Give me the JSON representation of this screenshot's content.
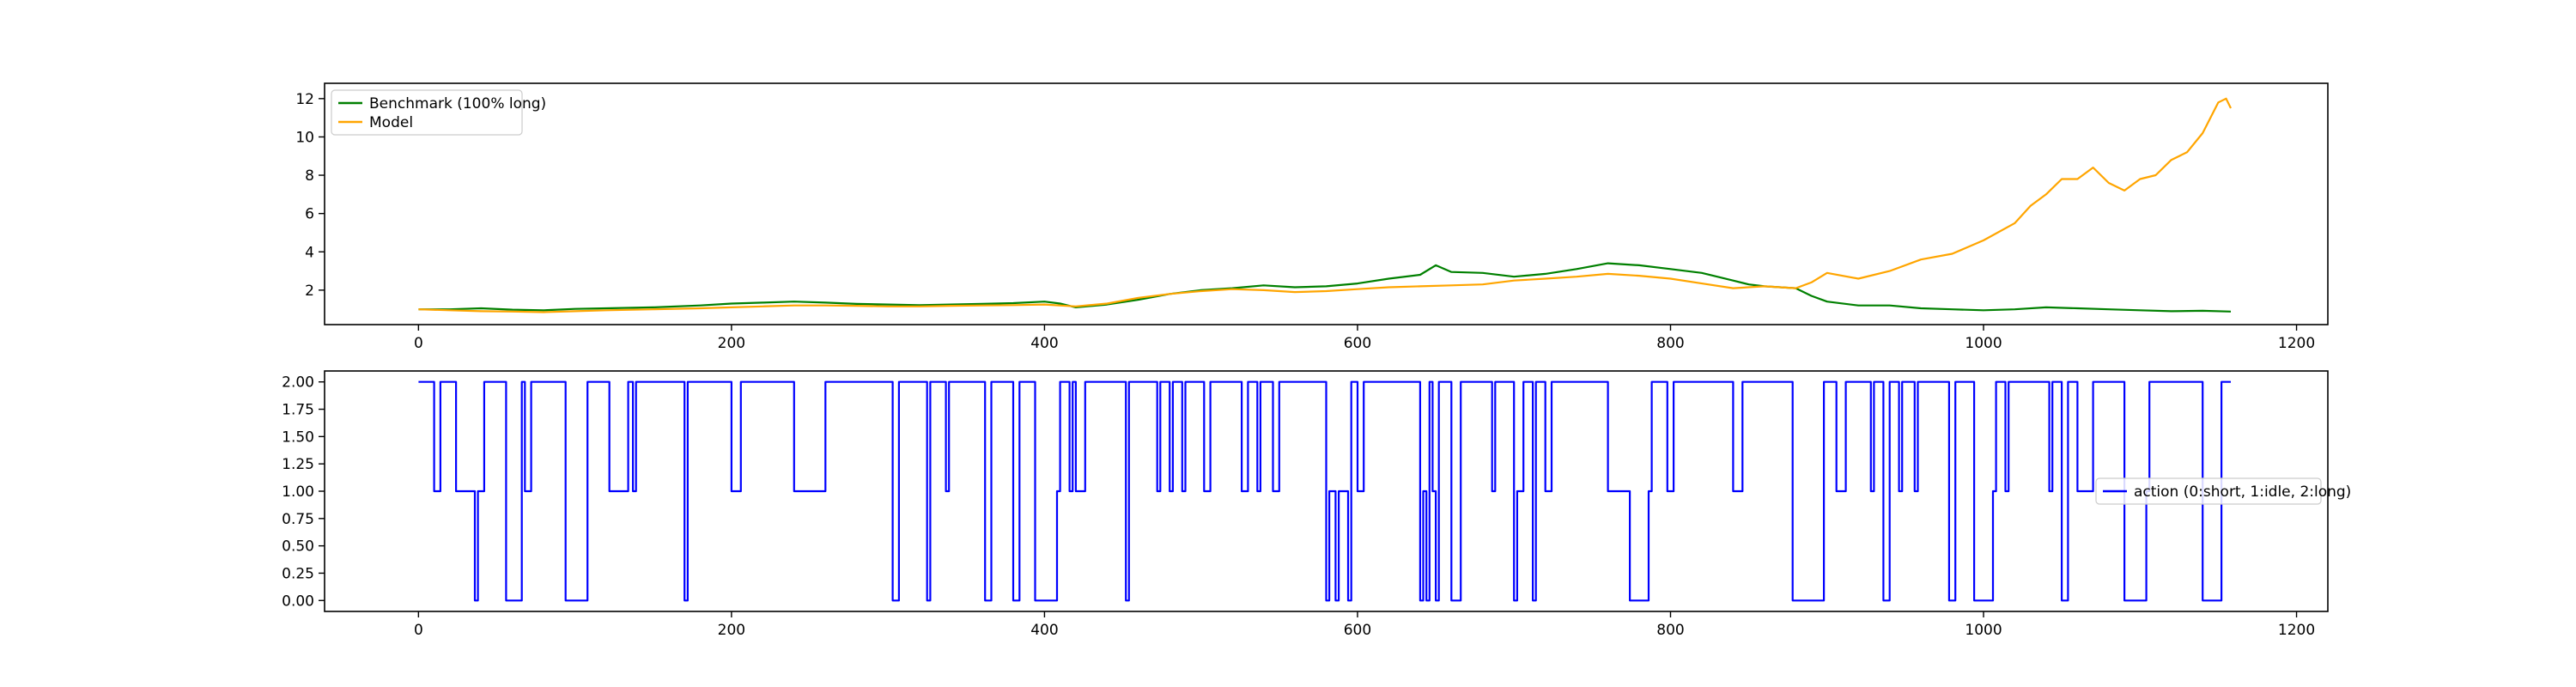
{
  "chart_data": [
    {
      "type": "line",
      "title": "",
      "xlabel": "",
      "ylabel": "",
      "xlim": [
        -60,
        1220
      ],
      "ylim": [
        0.2,
        12.8
      ],
      "xticks": [
        0,
        200,
        400,
        600,
        800,
        1000,
        1200
      ],
      "xtick_labels": [
        "0",
        "200",
        "400",
        "600",
        "800",
        "1000",
        "1200"
      ],
      "yticks": [
        2,
        4,
        6,
        8,
        10,
        12
      ],
      "ytick_labels": [
        "2",
        "4",
        "6",
        "8",
        "10",
        "12"
      ],
      "grid": false,
      "legend_position": "upper-left",
      "series": [
        {
          "name": "Benchmark (100% long)",
          "color": "#008000",
          "points": [
            [
              0,
              1.0
            ],
            [
              20,
              1.0
            ],
            [
              40,
              1.05
            ],
            [
              60,
              0.98
            ],
            [
              80,
              0.95
            ],
            [
              100,
              1.02
            ],
            [
              120,
              1.05
            ],
            [
              150,
              1.1
            ],
            [
              180,
              1.2
            ],
            [
              200,
              1.3
            ],
            [
              220,
              1.35
            ],
            [
              240,
              1.4
            ],
            [
              260,
              1.35
            ],
            [
              280,
              1.28
            ],
            [
              300,
              1.25
            ],
            [
              320,
              1.22
            ],
            [
              340,
              1.25
            ],
            [
              360,
              1.28
            ],
            [
              380,
              1.32
            ],
            [
              400,
              1.4
            ],
            [
              410,
              1.3
            ],
            [
              420,
              1.1
            ],
            [
              440,
              1.25
            ],
            [
              460,
              1.5
            ],
            [
              480,
              1.8
            ],
            [
              500,
              2.0
            ],
            [
              520,
              2.1
            ],
            [
              540,
              2.25
            ],
            [
              560,
              2.15
            ],
            [
              580,
              2.2
            ],
            [
              600,
              2.35
            ],
            [
              620,
              2.6
            ],
            [
              640,
              2.8
            ],
            [
              650,
              3.3
            ],
            [
              660,
              2.95
            ],
            [
              680,
              2.9
            ],
            [
              700,
              2.7
            ],
            [
              720,
              2.85
            ],
            [
              740,
              3.1
            ],
            [
              760,
              3.4
            ],
            [
              780,
              3.3
            ],
            [
              800,
              3.1
            ],
            [
              820,
              2.9
            ],
            [
              840,
              2.5
            ],
            [
              850,
              2.3
            ],
            [
              860,
              2.2
            ],
            [
              880,
              2.1
            ],
            [
              890,
              1.7
            ],
            [
              900,
              1.4
            ],
            [
              920,
              1.2
            ],
            [
              940,
              1.2
            ],
            [
              960,
              1.05
            ],
            [
              980,
              1.0
            ],
            [
              1000,
              0.95
            ],
            [
              1020,
              1.0
            ],
            [
              1040,
              1.1
            ],
            [
              1060,
              1.05
            ],
            [
              1080,
              1.0
            ],
            [
              1100,
              0.95
            ],
            [
              1120,
              0.9
            ],
            [
              1140,
              0.92
            ],
            [
              1158,
              0.88
            ]
          ]
        },
        {
          "name": "Model",
          "color": "#FFA500",
          "points": [
            [
              0,
              1.0
            ],
            [
              20,
              0.95
            ],
            [
              40,
              0.9
            ],
            [
              60,
              0.88
            ],
            [
              80,
              0.85
            ],
            [
              100,
              0.9
            ],
            [
              120,
              0.95
            ],
            [
              150,
              1.0
            ],
            [
              180,
              1.05
            ],
            [
              200,
              1.1
            ],
            [
              220,
              1.15
            ],
            [
              240,
              1.2
            ],
            [
              260,
              1.2
            ],
            [
              280,
              1.18
            ],
            [
              300,
              1.15
            ],
            [
              320,
              1.15
            ],
            [
              340,
              1.18
            ],
            [
              360,
              1.2
            ],
            [
              380,
              1.22
            ],
            [
              400,
              1.25
            ],
            [
              420,
              1.15
            ],
            [
              440,
              1.3
            ],
            [
              460,
              1.6
            ],
            [
              480,
              1.8
            ],
            [
              500,
              1.95
            ],
            [
              520,
              2.05
            ],
            [
              540,
              2.0
            ],
            [
              560,
              1.9
            ],
            [
              580,
              1.95
            ],
            [
              600,
              2.05
            ],
            [
              620,
              2.15
            ],
            [
              640,
              2.2
            ],
            [
              660,
              2.25
            ],
            [
              680,
              2.3
            ],
            [
              700,
              2.5
            ],
            [
              720,
              2.6
            ],
            [
              740,
              2.7
            ],
            [
              760,
              2.85
            ],
            [
              780,
              2.75
            ],
            [
              800,
              2.6
            ],
            [
              820,
              2.35
            ],
            [
              840,
              2.1
            ],
            [
              860,
              2.2
            ],
            [
              880,
              2.1
            ],
            [
              890,
              2.4
            ],
            [
              900,
              2.9
            ],
            [
              920,
              2.6
            ],
            [
              940,
              3.0
            ],
            [
              960,
              3.6
            ],
            [
              980,
              3.9
            ],
            [
              1000,
              4.6
            ],
            [
              1020,
              5.5
            ],
            [
              1030,
              6.4
            ],
            [
              1040,
              7.0
            ],
            [
              1050,
              7.8
            ],
            [
              1060,
              7.8
            ],
            [
              1070,
              8.4
            ],
            [
              1080,
              7.6
            ],
            [
              1090,
              7.2
            ],
            [
              1100,
              7.8
            ],
            [
              1110,
              8.0
            ],
            [
              1120,
              8.8
            ],
            [
              1130,
              9.2
            ],
            [
              1140,
              10.2
            ],
            [
              1150,
              11.8
            ],
            [
              1155,
              12.0
            ],
            [
              1158,
              11.5
            ]
          ]
        }
      ]
    },
    {
      "type": "line",
      "title": "",
      "xlabel": "",
      "ylabel": "",
      "xlim": [
        -60,
        1220
      ],
      "ylim": [
        -0.1,
        2.1
      ],
      "xticks": [
        0,
        200,
        400,
        600,
        800,
        1000,
        1200
      ],
      "xtick_labels": [
        "0",
        "200",
        "400",
        "600",
        "800",
        "1000",
        "1200"
      ],
      "yticks": [
        0.0,
        0.25,
        0.5,
        0.75,
        1.0,
        1.25,
        1.5,
        1.75,
        2.0
      ],
      "ytick_labels": [
        "0.00",
        "0.25",
        "0.50",
        "0.75",
        "1.00",
        "1.25",
        "1.50",
        "1.75",
        "2.00"
      ],
      "grid": false,
      "legend_position": "center-right",
      "series": [
        {
          "name": "action (0:short, 1:idle, 2:long)",
          "color": "#0000FF",
          "step_segments": [
            [
              0,
              2
            ],
            [
              10,
              1
            ],
            [
              14,
              2
            ],
            [
              24,
              1
            ],
            [
              36,
              0
            ],
            [
              38,
              1
            ],
            [
              42,
              2
            ],
            [
              56,
              0
            ],
            [
              66,
              2
            ],
            [
              68,
              1
            ],
            [
              72,
              2
            ],
            [
              94,
              0
            ],
            [
              108,
              2
            ],
            [
              122,
              1
            ],
            [
              134,
              2
            ],
            [
              137,
              1
            ],
            [
              139,
              2
            ],
            [
              170,
              0
            ],
            [
              172,
              2
            ],
            [
              200,
              1
            ],
            [
              206,
              2
            ],
            [
              240,
              1
            ],
            [
              260,
              2
            ],
            [
              303,
              0
            ],
            [
              307,
              2
            ],
            [
              325,
              0
            ],
            [
              327,
              2
            ],
            [
              337,
              1
            ],
            [
              339,
              2
            ],
            [
              362,
              0
            ],
            [
              366,
              2
            ],
            [
              380,
              0
            ],
            [
              384,
              2
            ],
            [
              394,
              0
            ],
            [
              408,
              1
            ],
            [
              410,
              2
            ],
            [
              416,
              1
            ],
            [
              418,
              2
            ],
            [
              420,
              1
            ],
            [
              424,
              1
            ],
            [
              426,
              2
            ],
            [
              452,
              0
            ],
            [
              454,
              2
            ],
            [
              472,
              1
            ],
            [
              474,
              2
            ],
            [
              480,
              1
            ],
            [
              482,
              2
            ],
            [
              488,
              1
            ],
            [
              490,
              2
            ],
            [
              502,
              1
            ],
            [
              506,
              2
            ],
            [
              526,
              1
            ],
            [
              530,
              2
            ],
            [
              536,
              1
            ],
            [
              538,
              2
            ],
            [
              546,
              1
            ],
            [
              550,
              2
            ],
            [
              580,
              0
            ],
            [
              582,
              1
            ],
            [
              586,
              0
            ],
            [
              588,
              1
            ],
            [
              594,
              0
            ],
            [
              596,
              2
            ],
            [
              600,
              1
            ],
            [
              604,
              2
            ],
            [
              640,
              0
            ],
            [
              642,
              1
            ],
            [
              644,
              0
            ],
            [
              646,
              2
            ],
            [
              648,
              1
            ],
            [
              650,
              0
            ],
            [
              652,
              2
            ],
            [
              660,
              0
            ],
            [
              666,
              2
            ],
            [
              686,
              1
            ],
            [
              688,
              2
            ],
            [
              700,
              0
            ],
            [
              702,
              1
            ],
            [
              706,
              2
            ],
            [
              712,
              0
            ],
            [
              714,
              2
            ],
            [
              720,
              1
            ],
            [
              724,
              2
            ],
            [
              760,
              1
            ],
            [
              774,
              0
            ],
            [
              786,
              1
            ],
            [
              788,
              2
            ],
            [
              798,
              1
            ],
            [
              802,
              2
            ],
            [
              840,
              1
            ],
            [
              846,
              2
            ],
            [
              878,
              0
            ],
            [
              898,
              2
            ],
            [
              906,
              1
            ],
            [
              912,
              2
            ],
            [
              928,
              1
            ],
            [
              930,
              2
            ],
            [
              936,
              0
            ],
            [
              940,
              2
            ],
            [
              946,
              1
            ],
            [
              948,
              2
            ],
            [
              956,
              1
            ],
            [
              958,
              2
            ],
            [
              978,
              0
            ],
            [
              982,
              2
            ],
            [
              994,
              0
            ],
            [
              1006,
              1
            ],
            [
              1008,
              2
            ],
            [
              1014,
              1
            ],
            [
              1016,
              2
            ],
            [
              1042,
              1
            ],
            [
              1044,
              2
            ],
            [
              1050,
              0
            ],
            [
              1054,
              2
            ],
            [
              1060,
              1
            ],
            [
              1070,
              2
            ],
            [
              1090,
              0
            ],
            [
              1104,
              1
            ],
            [
              1106,
              2
            ],
            [
              1140,
              0
            ],
            [
              1152,
              2
            ],
            [
              1158,
              2
            ]
          ]
        }
      ]
    }
  ]
}
